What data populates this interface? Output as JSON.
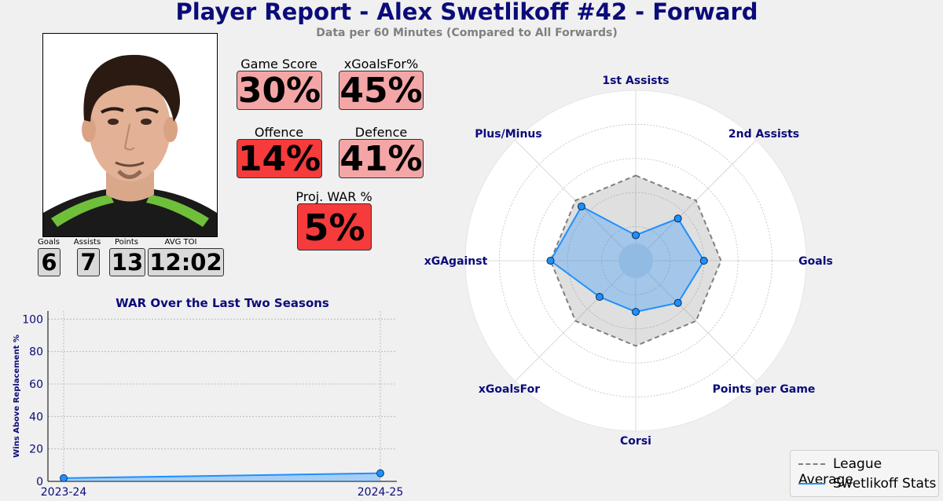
{
  "header": {
    "title": "Player Report - Alex Swetlikoff #42 - Forward",
    "subtitle": "Data per 60 Minutes (Compared to All Forwards)"
  },
  "stats": [
    {
      "label": "Goals",
      "value": "6"
    },
    {
      "label": "Assists",
      "value": "7"
    },
    {
      "label": "Points",
      "value": "13"
    },
    {
      "label": "AVG TOI",
      "value": "12:02"
    }
  ],
  "metrics": [
    {
      "label": "Game Score",
      "value": "30%",
      "color": "#f4a6a6"
    },
    {
      "label": "xGoalsFor%",
      "value": "45%",
      "color": "#f4a6a6"
    },
    {
      "label": "Offence",
      "value": "14%",
      "color": "#f53b3b"
    },
    {
      "label": "Defence",
      "value": "41%",
      "color": "#f4a6a6"
    },
    {
      "label": "Proj. WAR %",
      "value": "5%",
      "color": "#f53b3b"
    }
  ],
  "colors": {
    "title": "#0b0b7a",
    "player_series": "#1e90ff",
    "league_series": "#808080",
    "background": "#f0f0f0"
  },
  "chart_data": [
    {
      "type": "line",
      "title": "WAR Over the Last Two Seasons",
      "xlabel": "",
      "ylabel": "Wins Above Replacement %",
      "categories": [
        "2023-24",
        "2024-25"
      ],
      "values": [
        2,
        5
      ],
      "ylim": [
        0,
        105
      ],
      "yticks": [
        0,
        20,
        40,
        60,
        80,
        100
      ],
      "grid": true
    },
    {
      "type": "radar",
      "axes": [
        "1st Assists",
        "2nd Assists",
        "Goals",
        "Points per Game",
        "Corsi",
        "xGoalsFor",
        "xGAgainst",
        "Plus/Minus"
      ],
      "rlim": [
        0,
        100
      ],
      "grid": true,
      "legend_position": "bottom-right",
      "series": [
        {
          "name": "League Average",
          "values": [
            50,
            50,
            50,
            50,
            50,
            50,
            50,
            50
          ]
        },
        {
          "name": "Swetlikoff Stats",
          "values": [
            15,
            35,
            40,
            35,
            30,
            30,
            50,
            45
          ]
        }
      ]
    }
  ]
}
